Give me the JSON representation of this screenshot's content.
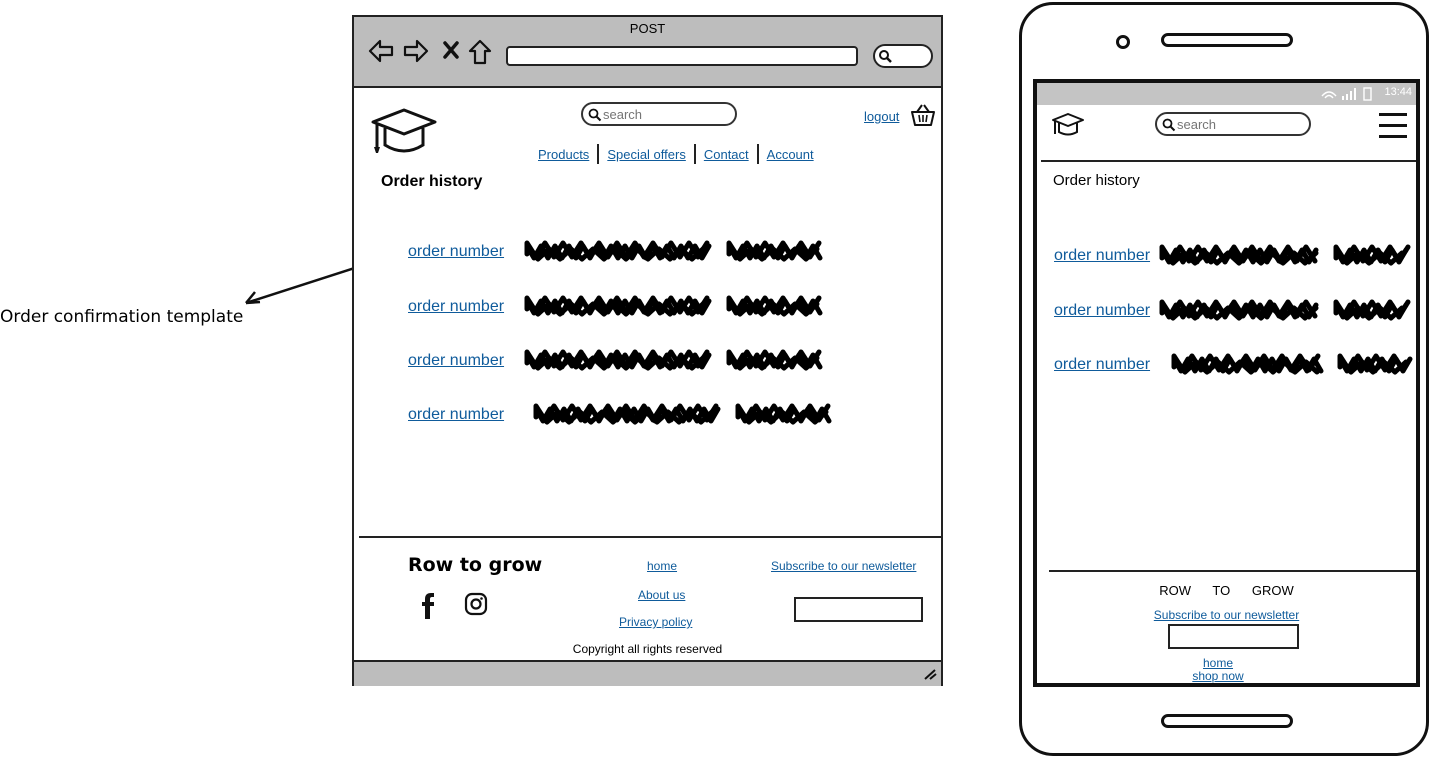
{
  "annotation": {
    "text": "Order confirmation template"
  },
  "browser": {
    "method": "POST",
    "search": {
      "placeholder": "search"
    },
    "logout_label": "logout",
    "nav": [
      "Products",
      "Special offers",
      "Contact",
      "Account"
    ],
    "page_title": "Order history",
    "orders": [
      {
        "label": "order number"
      },
      {
        "label": "order number"
      },
      {
        "label": "order number"
      },
      {
        "label": "order number"
      }
    ],
    "footer": {
      "brand": "Row to grow",
      "links": {
        "home": "home",
        "about": "About us",
        "privacy": "Privacy policy"
      },
      "subscribe_label": "Subscribe to our newsletter",
      "copyright": "Copyright all rights reserved"
    }
  },
  "phone": {
    "status_time": "13:44",
    "search": {
      "placeholder": "search"
    },
    "page_title": "Order history",
    "orders": [
      {
        "label": "order number"
      },
      {
        "label": "order number"
      },
      {
        "label": "order number"
      }
    ],
    "footer": {
      "brand": "ROW TO GROW",
      "subscribe_label": "Subscribe to our newsletter",
      "home_label": "home",
      "shop_label": "shop now"
    }
  },
  "colors": {
    "link": "#0f5b9b",
    "chrome": "#bdbdbd",
    "ink": "#111111"
  }
}
